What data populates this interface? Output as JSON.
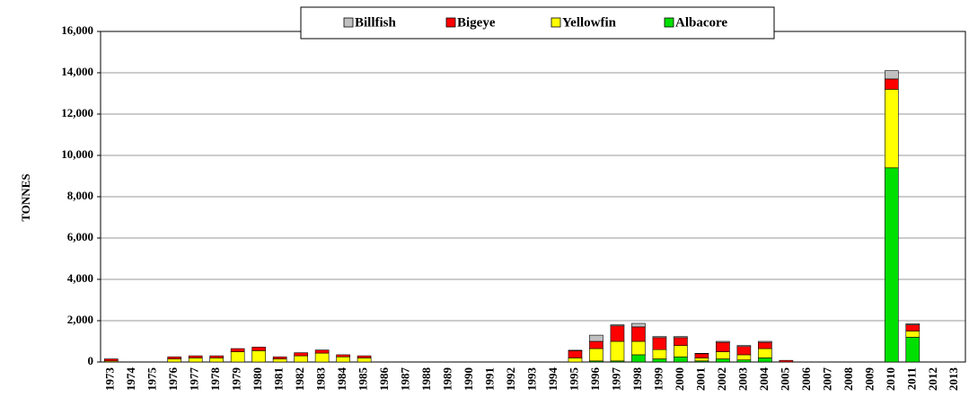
{
  "chart_data": {
    "type": "stacked_bar",
    "y_label": "TONNES",
    "categories": [
      "1973",
      "1974",
      "1975",
      "1976",
      "1977",
      "1978",
      "1979",
      "1980",
      "1981",
      "1982",
      "1983",
      "1984",
      "1985",
      "1986",
      "1987",
      "1988",
      "1989",
      "1990",
      "1991",
      "1992",
      "1993",
      "1994",
      "1995",
      "1996",
      "1997",
      "1998",
      "1999",
      "2000",
      "2001",
      "2002",
      "2003",
      "2004",
      "2005",
      "2006",
      "2007",
      "2008",
      "2009",
      "2010",
      "2011",
      "2012",
      "2013"
    ],
    "series": [
      {
        "name": "Billfish",
        "color": "#c0c0c0",
        "values": [
          0,
          0,
          0,
          0,
          0,
          0,
          0,
          0,
          0,
          0,
          0,
          0,
          0,
          0,
          0,
          0,
          0,
          0,
          0,
          0,
          0,
          0,
          20,
          300,
          50,
          170,
          50,
          50,
          20,
          50,
          50,
          50,
          0,
          0,
          0,
          0,
          0,
          400,
          50,
          0,
          0
        ]
      },
      {
        "name": "Bigeye",
        "color": "#ff0000",
        "values": [
          100,
          0,
          0,
          100,
          100,
          100,
          150,
          170,
          100,
          150,
          150,
          100,
          100,
          0,
          0,
          0,
          0,
          0,
          0,
          0,
          0,
          0,
          350,
          350,
          750,
          700,
          580,
          380,
          200,
          450,
          400,
          300,
          80,
          0,
          0,
          0,
          0,
          500,
          300,
          0,
          0
        ]
      },
      {
        "name": "Yellowfin",
        "color": "#ffff00",
        "values": [
          50,
          0,
          0,
          150,
          200,
          200,
          500,
          550,
          150,
          300,
          430,
          250,
          200,
          0,
          0,
          0,
          0,
          0,
          0,
          0,
          0,
          0,
          200,
          600,
          950,
          650,
          450,
          550,
          150,
          350,
          250,
          450,
          0,
          0,
          0,
          0,
          0,
          3800,
          300,
          0,
          0
        ]
      },
      {
        "name": "Albacore",
        "color": "#00e000",
        "values": [
          0,
          0,
          0,
          0,
          0,
          0,
          0,
          0,
          0,
          0,
          0,
          0,
          0,
          0,
          0,
          0,
          0,
          0,
          0,
          0,
          0,
          0,
          0,
          50,
          50,
          350,
          150,
          250,
          50,
          150,
          100,
          200,
          0,
          0,
          0,
          0,
          0,
          9400,
          1200,
          0,
          0
        ]
      }
    ],
    "ylim": [
      0,
      16000
    ],
    "yticks": [
      0,
      {
        "value": 2000,
        "label": "2,000"
      },
      {
        "value": 4000,
        "label": "4,000"
      },
      {
        "value": 6000,
        "label": "6,000"
      },
      {
        "value": 8000,
        "label": "8,000"
      },
      {
        "value": 10000,
        "label": "10,000"
      },
      {
        "value": 12000,
        "label": "12,000"
      },
      {
        "value": 14000,
        "label": "14,000"
      },
      {
        "value": 16000,
        "label": "16,000"
      }
    ],
    "grid": true,
    "legend": "top"
  }
}
